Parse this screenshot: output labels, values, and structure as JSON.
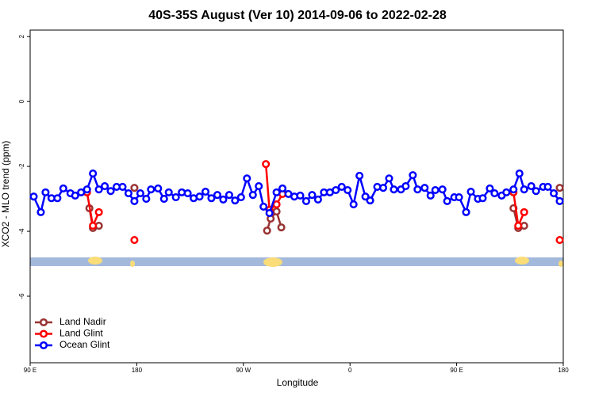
{
  "chart_data": {
    "type": "line",
    "title": "40S-35S August (Ver 10)   2014-09-06 to 2022-02-28",
    "x_label": "Longitude",
    "y_label": "XCO2 - MLO trend (ppm)",
    "xlim": [
      90,
      540
    ],
    "xticks": [
      {
        "value": 90,
        "label": "90 E"
      },
      180,
      {
        "value": 270,
        "label": "90 W"
      },
      {
        "value": 360,
        "label": "0"
      },
      {
        "value": 450,
        "label": "90 E"
      },
      {
        "value": 540,
        "label": "180"
      }
    ],
    "ylim": [
      -8.05,
      2.2
    ],
    "yticks": [
      2,
      0,
      -2,
      -4,
      -6
    ],
    "legend": "bottom-left",
    "series": [
      {
        "name": "Land Nadir",
        "color": "#993333",
        "x": [
          140,
          143,
          148,
          null,
          178,
          null,
          290,
          293,
          298,
          302,
          null,
          498,
          502,
          507,
          null,
          537
        ],
        "values": [
          -3.29,
          -3.9,
          -3.83,
          null,
          -2.66,
          null,
          -3.98,
          -3.61,
          -3.39,
          -3.88,
          null,
          -3.29,
          -3.9,
          -3.83,
          null,
          -2.66
        ]
      },
      {
        "name": "Land Glint",
        "color": "#ff0000",
        "x": [
          138,
          143,
          148,
          null,
          178,
          null,
          289,
          292,
          298,
          303,
          null,
          498,
          502,
          507,
          null,
          537
        ],
        "values": [
          -2.8,
          -3.83,
          -3.41,
          null,
          -4.27,
          null,
          -1.93,
          -3.34,
          -3.17,
          -2.85,
          null,
          -2.8,
          -3.83,
          -3.41,
          null,
          -4.27
        ]
      },
      {
        "name": "Ocean Glint",
        "color": "#0000ff",
        "x": [
          93,
          99,
          103,
          108,
          113,
          118,
          124,
          128,
          133,
          138,
          143,
          148,
          153,
          158,
          163,
          168,
          173,
          178,
          183,
          188,
          192,
          198,
          203,
          207,
          213,
          218,
          223,
          228,
          233,
          238,
          243,
          248,
          253,
          258,
          263,
          268,
          273,
          278,
          283,
          287,
          292,
          298,
          303,
          308,
          313,
          318,
          323,
          328,
          333,
          338,
          343,
          348,
          353,
          358,
          363,
          368,
          373,
          377,
          383,
          388,
          393,
          397,
          403,
          407,
          413,
          417,
          423,
          428,
          432,
          438,
          442,
          448,
          452,
          458,
          462,
          468,
          472,
          478,
          482,
          488,
          492,
          498,
          503,
          507,
          513,
          517,
          523,
          527,
          532,
          537
        ],
        "values": [
          -2.93,
          -3.41,
          -2.8,
          -2.98,
          -2.98,
          -2.68,
          -2.83,
          -2.9,
          -2.8,
          -2.71,
          -2.22,
          -2.71,
          -2.61,
          -2.76,
          -2.63,
          -2.63,
          -2.83,
          -3.07,
          -2.83,
          -3.0,
          -2.71,
          -2.68,
          -3.0,
          -2.8,
          -2.95,
          -2.8,
          -2.83,
          -2.98,
          -2.93,
          -2.78,
          -2.98,
          -2.88,
          -3.02,
          -2.88,
          -3.05,
          -2.95,
          -2.37,
          -2.88,
          -2.61,
          -3.24,
          -3.44,
          -2.8,
          -2.68,
          -2.85,
          -2.93,
          -2.9,
          -3.07,
          -2.88,
          -3.02,
          -2.8,
          -2.8,
          -2.73,
          -2.63,
          -2.73,
          -3.17,
          -2.29,
          -2.93,
          -3.05,
          -2.63,
          -2.66,
          -2.37,
          -2.71,
          -2.71,
          -2.61,
          -2.27,
          -2.71,
          -2.66,
          -2.9,
          -2.73,
          -2.71,
          -3.07,
          -2.95,
          -2.95,
          -3.41,
          -2.78,
          -3.0,
          -2.98,
          -2.68,
          -2.83,
          -2.9,
          -2.8,
          -2.71,
          -2.22,
          -2.71,
          -2.61,
          -2.76,
          -2.63,
          -2.63,
          -2.83,
          -3.07
        ]
      }
    ]
  }
}
